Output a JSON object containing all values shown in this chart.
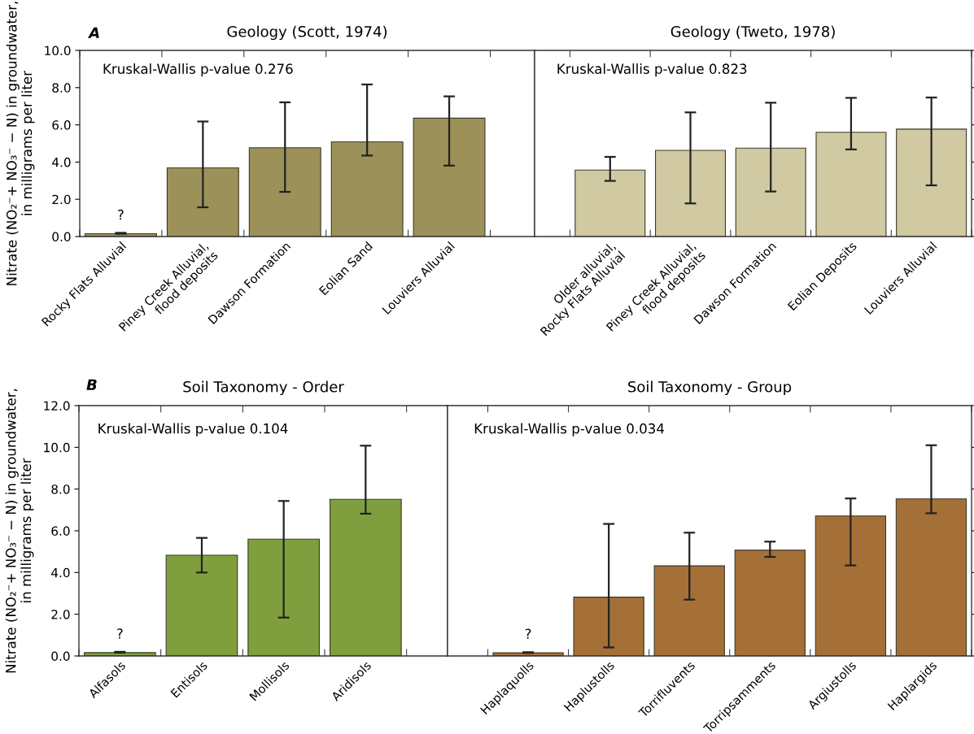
{
  "chart_data": [
    {
      "type": "bar",
      "title": "Geology (Scott, 1974)",
      "ylabel": "Nitrate (NO₂⁻+ NO₃⁻ − N) in groundwater,\nin milligrams per liter",
      "categories": [
        "Rocky Flats Alluvial",
        "Piney Creek Alluvial,\nflood deposits",
        "Dawson Formation",
        "Eolian Sand",
        "Louviers Alluvial"
      ],
      "values": [
        0.15,
        3.69,
        4.77,
        5.09,
        6.36
      ],
      "color": "#9c9158",
      "errors": [
        [
          0.15,
          0.2
        ],
        [
          1.57,
          6.18
        ],
        [
          2.4,
          7.21
        ],
        [
          4.35,
          8.17
        ],
        [
          3.81,
          7.53
        ]
      ],
      "ylim": [
        0,
        10
      ],
      "yticks": [
        {
          "value": 0,
          "label": "0.0"
        },
        {
          "value": 2,
          "label": "2.0"
        },
        {
          "value": 4,
          "label": "4.0"
        },
        {
          "value": 6,
          "label": "6.0"
        },
        {
          "value": 8,
          "label": "8.0"
        },
        {
          "value": 10,
          "label": "10.0"
        }
      ],
      "annotations": [
        "A",
        "Kruskal-Wallis p-value 0.276",
        {
          "text": "?",
          "x": "Rocky Flats Alluvial",
          "y": 0.15
        }
      ]
    },
    {
      "type": "bar",
      "title": "Geology (Tweto, 1978)",
      "categories": [
        "Older alluvial,\nRocky Flats Alluvial",
        "Piney Creek Alluvial,\nflood deposits",
        "Dawson Formation",
        "Eolian Deposits",
        "Louviers Alluvial"
      ],
      "values": [
        3.57,
        4.63,
        4.75,
        5.6,
        5.77
      ],
      "color": "#d0c9a2",
      "errors": [
        [
          2.99,
          4.28
        ],
        [
          1.78,
          6.67
        ],
        [
          2.42,
          7.19
        ],
        [
          4.68,
          7.45
        ],
        [
          2.75,
          7.47
        ]
      ],
      "ylim": [
        0,
        10
      ],
      "yticks": [
        0,
        2,
        4,
        6,
        8,
        10
      ],
      "tick_labels": "x",
      "annotations": [
        "Kruskal-Wallis p-value 0.823"
      ]
    },
    {
      "type": "bar",
      "title": "Soil Taxonomy - Order",
      "ylabel": "Nitrate (NO₂⁻+ NO₃⁻ − N) in groundwater,\nin milligrams per liter",
      "categories": [
        "Alfasols",
        "Entisols",
        "Mollisols",
        "Aridisols"
      ],
      "values": [
        0.16,
        4.83,
        5.6,
        7.51
      ],
      "color": "#7f9f3f",
      "errors": [
        [
          0.16,
          0.2
        ],
        [
          4.0,
          5.66
        ],
        [
          1.84,
          7.43
        ],
        [
          6.82,
          10.08
        ]
      ],
      "ylim": [
        0,
        12
      ],
      "yticks": [
        {
          "value": 0,
          "label": "0.0"
        },
        {
          "value": 2,
          "label": "2.0"
        },
        {
          "value": 4,
          "label": "4.0"
        },
        {
          "value": 6,
          "label": "6.0"
        },
        {
          "value": 8,
          "label": "8.0"
        },
        {
          "value": 10,
          "label": "10.0"
        },
        {
          "value": 12,
          "label": "12.0"
        }
      ],
      "annotations": [
        "B",
        "Kruskal-Wallis p-value 0.104",
        {
          "text": "?",
          "x": "Alfasols",
          "y": 0.16
        }
      ]
    },
    {
      "type": "bar",
      "title": "Soil Taxonomy - Group",
      "categories": [
        "Haplaquolls",
        "Haplustolls",
        "Torrifluvents",
        "Torripsamments",
        "Argiustolls",
        "Haplargids"
      ],
      "values": [
        0.15,
        2.82,
        4.32,
        5.07,
        6.71,
        7.53
      ],
      "color": "#a56f38",
      "errors": [
        [
          0.15,
          0.18
        ],
        [
          0.41,
          6.33
        ],
        [
          2.7,
          5.91
        ],
        [
          4.75,
          5.48
        ],
        [
          4.34,
          7.55
        ],
        [
          6.84,
          10.1
        ]
      ],
      "ylim": [
        0,
        12
      ],
      "yticks": [
        0,
        2,
        4,
        6,
        8,
        10,
        12
      ],
      "tick_labels": "x",
      "annotations": [
        "Kruskal-Wallis p-value 0.034",
        {
          "text": "?",
          "x": "Haplaquolls",
          "y": 0.15
        }
      ]
    }
  ]
}
